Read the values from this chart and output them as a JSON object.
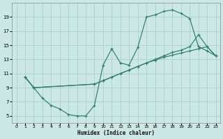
{
  "xlabel": "Humidex (Indice chaleur)",
  "bg_color": "#cce8e5",
  "grid_color": "#aacfcc",
  "line_color": "#2e7d6e",
  "xlim": [
    -0.5,
    23.5
  ],
  "ylim": [
    4,
    21
  ],
  "xticks": [
    0,
    1,
    2,
    3,
    4,
    5,
    6,
    7,
    8,
    9,
    10,
    11,
    12,
    13,
    14,
    15,
    16,
    17,
    18,
    19,
    20,
    21,
    22,
    23
  ],
  "yticks": [
    5,
    7,
    9,
    11,
    13,
    15,
    17,
    19
  ],
  "line1_x": [
    1,
    2,
    3,
    4,
    5,
    6,
    7,
    8,
    9,
    10,
    11,
    12,
    13,
    14,
    15,
    16,
    17,
    18,
    19,
    20,
    21,
    22,
    23
  ],
  "line1_y": [
    10.5,
    9.0,
    7.5,
    6.5,
    6.0,
    5.2,
    5.0,
    5.0,
    6.5,
    12.2,
    14.5,
    12.5,
    12.2,
    14.7,
    19.0,
    19.3,
    19.8,
    20.0,
    19.5,
    18.8,
    14.8,
    14.2,
    13.5
  ],
  "line2_x": [
    1,
    2,
    9,
    10,
    11,
    12,
    13,
    14,
    15,
    16,
    17,
    18,
    19,
    20,
    21,
    22,
    23
  ],
  "line2_y": [
    10.5,
    9.0,
    9.5,
    10.0,
    10.5,
    11.0,
    11.5,
    12.0,
    12.5,
    12.9,
    13.3,
    13.6,
    13.9,
    14.2,
    14.5,
    14.8,
    13.5
  ],
  "line3_x": [
    1,
    2,
    9,
    10,
    11,
    12,
    13,
    14,
    15,
    16,
    17,
    18,
    19,
    20,
    21,
    22,
    23
  ],
  "line3_y": [
    10.5,
    9.0,
    9.5,
    10.0,
    10.5,
    11.0,
    11.5,
    12.0,
    12.5,
    13.0,
    13.5,
    14.0,
    14.3,
    14.8,
    16.5,
    14.8,
    13.5
  ]
}
